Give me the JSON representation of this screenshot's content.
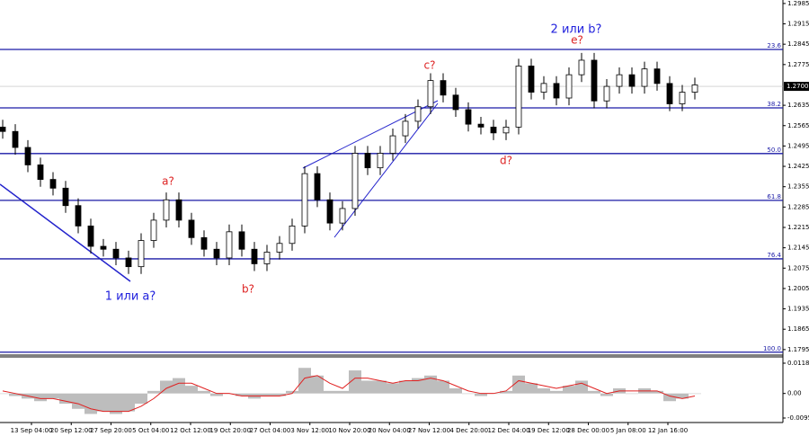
{
  "chart_data": {
    "type": "candlestick",
    "ylim": [
      1.1776,
      1.2997
    ],
    "yticks": [
      1.2985,
      1.2915,
      1.2845,
      1.2775,
      1.2635,
      1.2565,
      1.2495,
      1.2425,
      1.2355,
      1.2285,
      1.2215,
      1.2145,
      1.2075,
      1.2005,
      1.1935,
      1.1865,
      1.1795
    ],
    "current_price": {
      "value": 1.27,
      "label": "1.2700"
    },
    "x_labels": [
      "13 Sep 04:00",
      "20 Sep 12:00",
      "27 Sep 20:00",
      "5 Oct 04:00",
      "12 Oct 12:00",
      "19 Oct 20:00",
      "27 Oct 04:00",
      "3 Nov 12:00",
      "10 Nov 20:00",
      "20 Nov 04:00",
      "27 Nov 12:00",
      "4 Dec 20:00",
      "12 Dec 04:00",
      "19 Dec 12:00",
      "28 Dec 00:00",
      "5 Jan 08:00",
      "12 Jan 16:00"
    ],
    "open": [
      1.256,
      1.2545,
      1.249,
      1.243,
      1.238,
      1.235,
      1.229,
      1.222,
      1.215,
      1.214,
      1.211,
      1.208,
      1.217,
      1.224,
      1.231,
      1.224,
      1.218,
      1.214,
      1.211,
      1.22,
      1.214,
      1.209,
      1.213,
      1.216,
      1.222,
      1.24,
      1.231,
      1.223,
      1.228,
      1.247,
      1.242,
      1.247,
      1.253,
      1.258,
      1.263,
      1.272,
      1.267,
      1.262,
      1.257,
      1.256,
      1.254,
      1.256,
      1.277,
      1.268,
      1.271,
      1.266,
      1.274,
      1.279,
      1.265,
      1.27,
      1.274,
      1.27,
      1.276,
      1.271,
      1.264,
      1.268
    ],
    "high": [
      1.2585,
      1.257,
      1.2515,
      1.2455,
      1.2405,
      1.2375,
      1.2315,
      1.2245,
      1.2175,
      1.2165,
      1.2135,
      1.2195,
      1.2265,
      1.2335,
      1.2335,
      1.2265,
      1.2205,
      1.2165,
      1.2225,
      1.2225,
      1.2165,
      1.2155,
      1.2185,
      1.2245,
      1.2425,
      1.2425,
      1.2335,
      1.2305,
      1.2495,
      1.2495,
      1.2495,
      1.2555,
      1.2605,
      1.2655,
      1.2745,
      1.2745,
      1.2695,
      1.2645,
      1.2595,
      1.2585,
      1.2585,
      1.2795,
      1.2795,
      1.2735,
      1.2735,
      1.2765,
      1.2815,
      1.2815,
      1.2725,
      1.2765,
      1.2765,
      1.2785,
      1.2785,
      1.2735,
      1.2705,
      1.273
    ],
    "low": [
      1.252,
      1.2465,
      1.2405,
      1.2355,
      1.2325,
      1.2265,
      1.2195,
      1.2125,
      1.2115,
      1.2085,
      1.2055,
      1.2055,
      1.2145,
      1.2215,
      1.2215,
      1.2155,
      1.2115,
      1.2085,
      1.2085,
      1.2115,
      1.2065,
      1.2065,
      1.2105,
      1.2135,
      1.2195,
      1.2285,
      1.2205,
      1.2205,
      1.2255,
      1.2395,
      1.2395,
      1.2445,
      1.2505,
      1.2555,
      1.2605,
      1.2645,
      1.2595,
      1.2545,
      1.2535,
      1.2515,
      1.2515,
      1.2535,
      1.2655,
      1.2655,
      1.2635,
      1.2635,
      1.2715,
      1.2625,
      1.2625,
      1.2675,
      1.2675,
      1.2675,
      1.2685,
      1.2615,
      1.2615,
      1.2655
    ],
    "close": [
      1.2545,
      1.249,
      1.243,
      1.238,
      1.235,
      1.229,
      1.222,
      1.215,
      1.214,
      1.211,
      1.208,
      1.217,
      1.224,
      1.231,
      1.224,
      1.218,
      1.214,
      1.211,
      1.22,
      1.214,
      1.209,
      1.213,
      1.216,
      1.222,
      1.24,
      1.231,
      1.223,
      1.228,
      1.247,
      1.242,
      1.247,
      1.253,
      1.258,
      1.263,
      1.272,
      1.267,
      1.262,
      1.257,
      1.256,
      1.254,
      1.256,
      1.277,
      1.268,
      1.271,
      1.266,
      1.274,
      1.279,
      1.265,
      1.27,
      1.274,
      1.27,
      1.276,
      1.271,
      1.264,
      1.268,
      1.2705
    ],
    "fib_levels": [
      {
        "label": "23.6",
        "value": 1.2827
      },
      {
        "label": "38.2",
        "value": 1.2626
      },
      {
        "label": "50.0",
        "value": 1.2469
      },
      {
        "label": "61.8",
        "value": 1.2308
      },
      {
        "label": "76.4",
        "value": 1.2107
      },
      {
        "label": "100.0",
        "value": 1.1786
      }
    ],
    "annotations": [
      {
        "text": "2 или b?",
        "color": "#2222dd"
      },
      {
        "text": "e?",
        "color": "#dd2222"
      },
      {
        "text": "c?",
        "color": "#dd2222"
      },
      {
        "text": "d?",
        "color": "#dd2222"
      },
      {
        "text": "a?",
        "color": "#dd2222"
      },
      {
        "text": "b?",
        "color": "#dd2222"
      },
      {
        "text": "1 или a?",
        "color": "#2222dd"
      }
    ],
    "indicator": {
      "ylim": [
        -0.01135,
        0.01429
      ],
      "yticks": [
        0.01183,
        {
          "value": 0,
          "label": "0.00"
        },
        -0.00959
      ],
      "histogram": [
        0.0,
        -0.001,
        -0.002,
        -0.003,
        -0.002,
        -0.004,
        -0.006,
        -0.008,
        -0.007,
        -0.008,
        -0.007,
        -0.004,
        0.001,
        0.005,
        0.006,
        0.003,
        0.001,
        -0.001,
        0.0,
        -0.001,
        -0.002,
        -0.001,
        -0.001,
        0.001,
        0.01,
        0.007,
        0.001,
        0.001,
        0.009,
        0.005,
        0.005,
        0.004,
        0.005,
        0.006,
        0.007,
        0.005,
        0.002,
        0.0,
        -0.001,
        0.0,
        0.001,
        0.007,
        0.004,
        0.002,
        0.001,
        0.003,
        0.005,
        0.001,
        -0.001,
        0.002,
        0.0,
        0.002,
        0.001,
        -0.003,
        -0.002,
        0.0
      ],
      "signal": [
        0.001,
        0.0,
        -0.001,
        -0.002,
        -0.002,
        -0.003,
        -0.004,
        -0.006,
        -0.007,
        -0.007,
        -0.007,
        -0.005,
        -0.002,
        0.002,
        0.004,
        0.004,
        0.002,
        0.0,
        0.0,
        -0.001,
        -0.001,
        -0.001,
        -0.001,
        0.0,
        0.006,
        0.007,
        0.004,
        0.002,
        0.006,
        0.006,
        0.005,
        0.004,
        0.005,
        0.005,
        0.006,
        0.005,
        0.003,
        0.001,
        0.0,
        0.0,
        0.001,
        0.005,
        0.004,
        0.003,
        0.002,
        0.003,
        0.004,
        0.002,
        0.0,
        0.001,
        0.001,
        0.001,
        0.001,
        -0.001,
        -0.002,
        -0.001
      ]
    }
  }
}
